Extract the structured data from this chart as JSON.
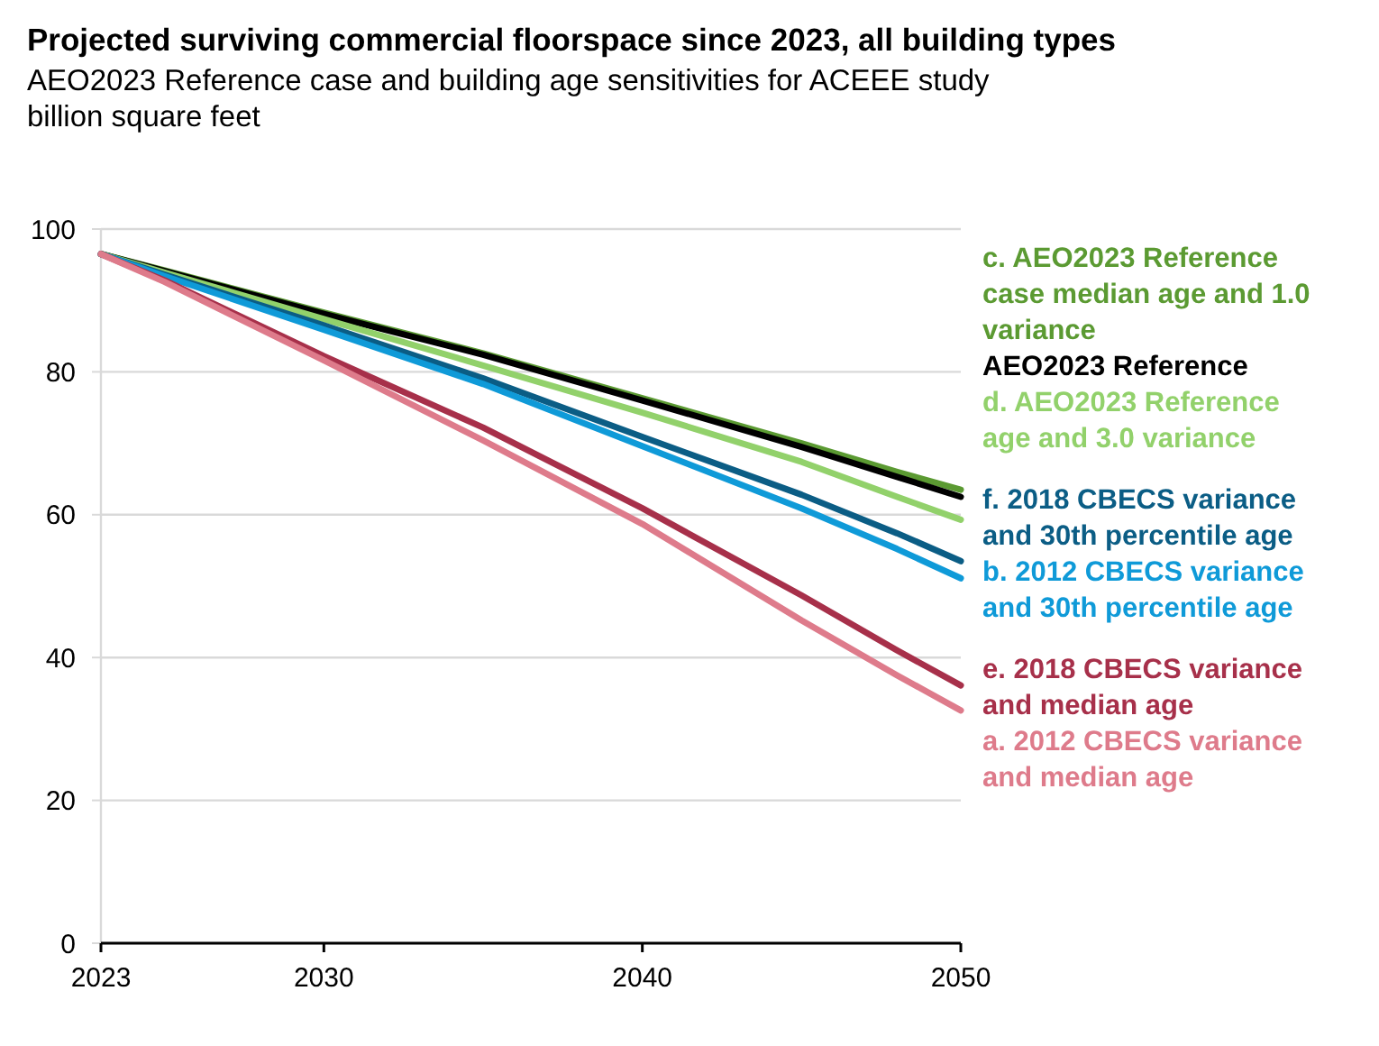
{
  "chart_data": {
    "type": "line",
    "title": "Projected surviving commercial floorspace since 2023, all building types",
    "subtitle": "AEO2023 Reference case and building  age sensitivities for ACEEE study",
    "ylabel": "billion square feet",
    "x": [
      2023,
      2025,
      2030,
      2035,
      2040,
      2045,
      2048,
      2050
    ],
    "xlim": [
      2023,
      2050
    ],
    "xticks": [
      2023,
      2030,
      2040,
      2050
    ],
    "ylim": [
      0,
      100
    ],
    "yticks": [
      0,
      20,
      40,
      60,
      80,
      100
    ],
    "grid": "y",
    "legend": "right",
    "line_style": "solid",
    "marker": "none",
    "series": [
      {
        "name": "c. AEO2023 Reference case median age and 1.0 variance",
        "color": "#5b9a32",
        "values": [
          96.5,
          94.2,
          88.3,
          82.6,
          76.3,
          70.0,
          66.0,
          63.5
        ]
      },
      {
        "name": "AEO2023 Reference",
        "color": "#000000",
        "values": [
          96.5,
          94.1,
          88.1,
          82.4,
          76.0,
          69.5,
          65.3,
          62.5
        ]
      },
      {
        "name": "d. AEO2023 Reference age and 3.0 variance",
        "color": "#92d16b",
        "values": [
          96.5,
          93.9,
          87.4,
          80.9,
          74.3,
          67.4,
          62.5,
          59.3
        ]
      },
      {
        "name": "f. 2018 CBECS variance and 30th percentile age",
        "color": "#0b5d85",
        "values": [
          96.5,
          93.6,
          86.5,
          79.1,
          70.9,
          62.8,
          57.4,
          53.5
        ]
      },
      {
        "name": "b. 2012 CBECS variance and 30th percentile age",
        "color": "#0f9ad8",
        "values": [
          96.5,
          93.4,
          85.9,
          78.3,
          69.6,
          60.9,
          55.2,
          51.1
        ]
      },
      {
        "name": "e. 2018 CBECS variance and median age",
        "color": "#a7304a",
        "values": [
          96.5,
          92.8,
          82.2,
          72.2,
          60.9,
          48.7,
          41.0,
          36.1
        ]
      },
      {
        "name": "a. 2012 CBECS variance and median age",
        "color": "#de7b8b",
        "values": [
          96.5,
          92.6,
          81.6,
          70.4,
          58.7,
          45.2,
          37.5,
          32.6
        ]
      }
    ]
  }
}
